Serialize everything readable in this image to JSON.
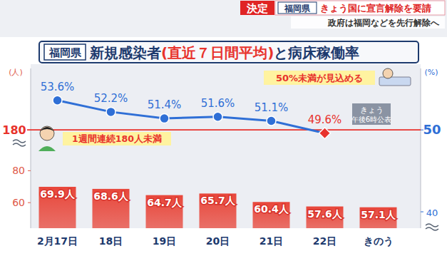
{
  "chart_data": {
    "type": "bar",
    "header": {
      "tag": "決定",
      "place": "福岡県",
      "headline": "きょう国に宣言解除を要請",
      "sub": "政府は福岡などを先行解除へ"
    },
    "title": [
      "福岡県",
      "新規感染者",
      "(直近７日間平均)",
      "と病床稼働率"
    ],
    "y_label": "(人)",
    "y2_label": "(%)",
    "categories": [
      "2月17日",
      "18日",
      "19日",
      "20日",
      "21日",
      "22日",
      "きのう"
    ],
    "series": [
      {
        "name": "新規感染者",
        "type": "bar",
        "color": "#e8463a",
        "values": [
          69.9,
          68.6,
          64.7,
          65.7,
          60.4,
          57.6,
          57.1
        ],
        "value_labels": [
          "69.9人",
          "68.6人",
          "64.7人",
          "65.7人",
          "60.4人",
          "57.6人",
          "57.1人"
        ]
      },
      {
        "name": "病床稼働率",
        "type": "line",
        "axis": "y2",
        "color": "#2f6fd6",
        "marker": "circle",
        "colors": [
          "#2f6fd6",
          "#2f6fd6",
          "#2f6fd6",
          "#2f6fd6",
          "#2f6fd6",
          "#e8322c",
          "#2f6fd6"
        ],
        "values": [
          53.6,
          52.2,
          51.4,
          51.6,
          51.1,
          49.6,
          null
        ],
        "value_labels": [
          "53.6%",
          "52.2%",
          "51.4%",
          "51.6%",
          "51.1%",
          "49.6%",
          null
        ]
      }
    ],
    "ylim": [
      44,
      144
    ],
    "yticks": [
      60,
      80
    ],
    "y2lim": [
      38,
      57.5
    ],
    "y2ticks": [
      40,
      50
    ],
    "threshold": {
      "value": 50,
      "axis": "y2",
      "label": "180",
      "color": "#e8322c"
    },
    "annotations": [
      "50%未満が見込める",
      "きょう",
      "午後6時公表",
      "1週間連続180人未満"
    ],
    "data_labels": true,
    "grid": false
  }
}
